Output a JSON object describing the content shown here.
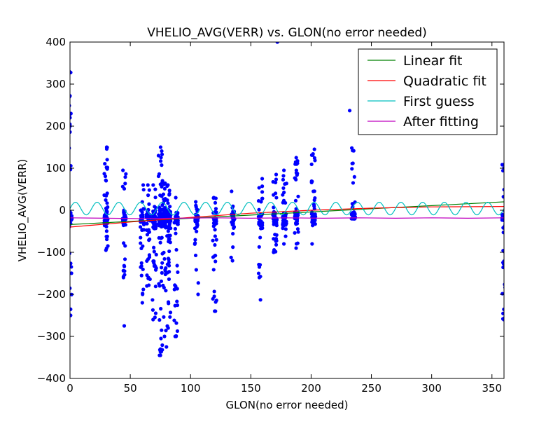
{
  "chart_data": {
    "type": "scatter",
    "title": "VHELIO_AVG(VERR) vs. GLON(no error needed)",
    "xlabel": "GLON(no error needed)",
    "ylabel": "VHELIO_AVG(VERR)",
    "xlim": [
      0,
      360
    ],
    "ylim": [
      -400,
      400
    ],
    "xticks": [
      "0",
      "50",
      "100",
      "150",
      "200",
      "250",
      "300",
      "350"
    ],
    "yticks": [
      "400",
      "300",
      "200",
      "100",
      "0",
      "−100",
      "−200",
      "−300",
      "−400"
    ],
    "grid": false,
    "legend_position": "top-right",
    "series": [
      {
        "name": "Linear fit",
        "kind": "line",
        "color": "#008000",
        "x": [
          0,
          360
        ],
        "y": [
          -34,
          20
        ]
      },
      {
        "name": "Quadratic fit",
        "kind": "line",
        "color": "#ff0000",
        "x": [
          0,
          50,
          100,
          150,
          200,
          250,
          300,
          360
        ],
        "y": [
          -40,
          -28,
          -17,
          -7,
          0,
          5,
          8,
          9
        ]
      },
      {
        "name": "First guess",
        "kind": "sine",
        "color": "#00bfbf",
        "offset": 4,
        "amplitude": 15,
        "period_deg": 18,
        "x_start": 0,
        "x_end": 360
      },
      {
        "name": "After fitting",
        "kind": "line",
        "color": "#bf00bf",
        "x": [
          0,
          30,
          60,
          90,
          120,
          150,
          180,
          210,
          240,
          270,
          300,
          330,
          360
        ],
        "y": [
          -18,
          -19,
          -20,
          -19,
          -18,
          -19,
          -18,
          -19,
          -18,
          -19,
          -18,
          -19,
          -18
        ]
      }
    ],
    "points": {
      "name": "data",
      "color": "#0000ff",
      "columns": [
        {
          "x": 0,
          "min": -250,
          "max": 330,
          "n": 50
        },
        {
          "x": 30,
          "min": -95,
          "max": 150,
          "n": 55
        },
        {
          "x": 45,
          "min": -160,
          "max": 95,
          "n": 40
        },
        {
          "x": 60,
          "min": -200,
          "max": 60,
          "n": 45
        },
        {
          "x": 65,
          "min": -180,
          "max": 60,
          "n": 40
        },
        {
          "x": 70,
          "min": -260,
          "max": 60,
          "n": 60
        },
        {
          "x": 75,
          "min": -345,
          "max": 150,
          "n": 90
        },
        {
          "x": 78,
          "min": -300,
          "max": 70,
          "n": 70
        },
        {
          "x": 82,
          "min": -280,
          "max": 60,
          "n": 70
        },
        {
          "x": 88,
          "min": -300,
          "max": 30,
          "n": 45
        },
        {
          "x": 105,
          "min": -200,
          "max": 20,
          "n": 40
        },
        {
          "x": 120,
          "min": -240,
          "max": 30,
          "n": 45
        },
        {
          "x": 135,
          "min": -120,
          "max": 45,
          "n": 35
        },
        {
          "x": 158,
          "min": -160,
          "max": 75,
          "n": 40
        },
        {
          "x": 170,
          "min": -100,
          "max": 85,
          "n": 40
        },
        {
          "x": 178,
          "min": -80,
          "max": 95,
          "n": 40
        },
        {
          "x": 188,
          "min": -90,
          "max": 125,
          "n": 45
        },
        {
          "x": 202,
          "min": -80,
          "max": 145,
          "n": 45
        },
        {
          "x": 235,
          "min": -20,
          "max": 148,
          "n": 45
        },
        {
          "x": 360,
          "min": -260,
          "max": 110,
          "n": 50
        }
      ],
      "extra": [
        {
          "x": 0,
          "y": 328
        },
        {
          "x": 0,
          "y": 272
        },
        {
          "x": 0,
          "y": 220
        },
        {
          "x": 0,
          "y": 200
        },
        {
          "x": 0,
          "y": 186
        },
        {
          "x": 0,
          "y": -250
        },
        {
          "x": 172,
          "y": 400
        },
        {
          "x": 232,
          "y": 237
        },
        {
          "x": 45,
          "y": -275
        },
        {
          "x": 75,
          "y": -345
        },
        {
          "x": 80,
          "y": -325
        },
        {
          "x": 88,
          "y": -300
        },
        {
          "x": 120,
          "y": -240
        },
        {
          "x": 158,
          "y": -213
        },
        {
          "x": 60,
          "y": -220
        },
        {
          "x": 360,
          "y": -258
        }
      ]
    }
  }
}
